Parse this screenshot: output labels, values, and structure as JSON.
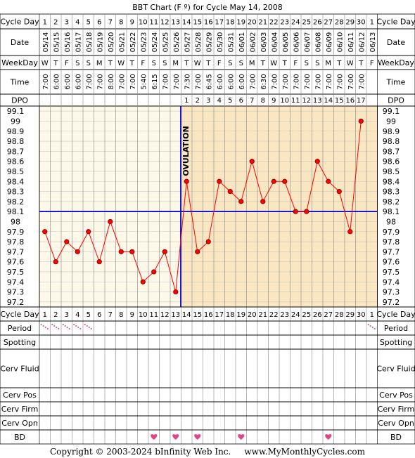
{
  "title": "BBT Chart (F º) for Cycle May 14, 2008",
  "footer": "Copyright © 2003-2024 bInfinity Web Inc.     www.MyMonthlyCycles.com",
  "row_labels": {
    "cycle_day": "Cycle Day",
    "date": "Date",
    "weekday": "WeekDay",
    "time": "Time",
    "dpo": "DPO",
    "period": "Period",
    "spotting": "Spotting",
    "cerv_fluid": "Cerv Fluid",
    "cerv_pos": "Cerv Pos",
    "cerv_firm": "Cerv Firm",
    "cerv_opn": "Cerv Opn",
    "bd": "BD"
  },
  "ovulation_label": "OVULATION",
  "colors": {
    "pre_ovulation_bg": "#fdf8e8",
    "post_ovulation_bg": "#fbe6c2",
    "ovulation_line": "#0000cc",
    "coverline": "#0000cc",
    "temp_line": "#ff0000",
    "temp_point": "#ff0000",
    "period_mark": "#cc66aa",
    "heart": "#e0458a"
  },
  "chart_data": {
    "type": "line",
    "y_axis_label": "",
    "ylim": [
      97.2,
      99.1
    ],
    "y_ticks": [
      99.1,
      99.0,
      98.9,
      98.8,
      98.7,
      98.6,
      98.5,
      98.4,
      98.3,
      98.2,
      98.1,
      98.0,
      97.9,
      97.8,
      97.7,
      97.6,
      97.5,
      97.4,
      97.3,
      97.2
    ],
    "cycle_days": [
      1,
      2,
      3,
      4,
      5,
      6,
      7,
      8,
      9,
      10,
      11,
      12,
      13,
      14,
      15,
      16,
      17,
      18,
      19,
      20,
      21,
      22,
      23,
      24,
      25,
      26,
      27,
      28,
      29,
      30,
      1
    ],
    "dates": [
      "05/14",
      "05/15",
      "05/16",
      "05/17",
      "05/18",
      "05/19",
      "05/20",
      "05/21",
      "05/22",
      "05/23",
      "05/24",
      "05/25",
      "05/26",
      "05/27",
      "05/28",
      "05/29",
      "05/30",
      "05/31",
      "06/01",
      "06/02",
      "06/03",
      "06/04",
      "06/05",
      "06/06",
      "06/07",
      "06/08",
      "06/09",
      "06/10",
      "06/11",
      "06/12",
      "06/13"
    ],
    "weekdays": [
      "W",
      "T",
      "F",
      "S",
      "S",
      "M",
      "T",
      "W",
      "T",
      "F",
      "S",
      "S",
      "M",
      "T",
      "W",
      "T",
      "F",
      "S",
      "S",
      "M",
      "T",
      "W",
      "T",
      "F",
      "S",
      "S",
      "M",
      "T",
      "W",
      "T",
      "F"
    ],
    "times": [
      "7:00",
      "6:00",
      "6:00",
      "6:00",
      "7:00",
      "7:00",
      "8:00",
      "7:00",
      "7:00",
      "5:40",
      "6:15",
      "7:00",
      "7:00",
      "7:30",
      "7:00",
      "6:45",
      "6:00",
      "6:00",
      "6:00",
      "7:00",
      "6:30",
      "7:00",
      "7:00",
      "7:00",
      "7:00",
      "7:00",
      "7:00",
      "7:00",
      "7:00",
      "7:00",
      ""
    ],
    "dpo": [
      "",
      "",
      "",
      "",
      "",
      "",
      "",
      "",
      "",
      "",
      "",
      "",
      "",
      "1",
      "2",
      "3",
      "4",
      "5",
      "6",
      "7",
      "8",
      "9",
      "10",
      "11",
      "12",
      "13",
      "14",
      "15",
      "16",
      "17",
      ""
    ],
    "temperatures": [
      97.9,
      97.6,
      97.8,
      97.7,
      97.9,
      97.6,
      98.0,
      97.7,
      97.7,
      97.4,
      97.5,
      97.7,
      97.3,
      98.4,
      97.7,
      97.8,
      98.4,
      98.3,
      98.2,
      98.6,
      98.2,
      98.4,
      98.4,
      98.1,
      98.1,
      98.6,
      98.4,
      98.3,
      97.9,
      99.0,
      null
    ],
    "coverline": 98.1,
    "ovulation_after_day_index": 12,
    "period_days": [
      0,
      1,
      2,
      3,
      4,
      30
    ],
    "bd_days": [
      10,
      12,
      14,
      18,
      26
    ]
  }
}
